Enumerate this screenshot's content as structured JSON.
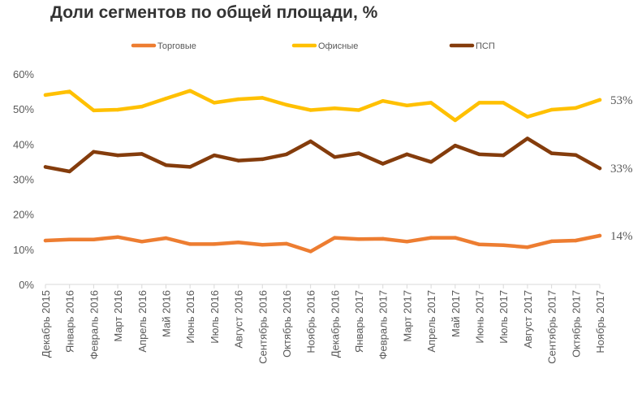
{
  "chart_data": {
    "type": "line",
    "title": "Доли сегментов по общей площади, %",
    "xlabel": "",
    "ylabel": "",
    "ylim": [
      0,
      60
    ],
    "yticks": [
      "0%",
      "10%",
      "20%",
      "30%",
      "40%",
      "50%",
      "60%"
    ],
    "grid": false,
    "legend_position": "top",
    "categories": [
      "Декабрь 2015",
      "Январь 2016",
      "Февраль 2016",
      "Март 2016",
      "Апрель 2016",
      "Май 2016",
      "Июнь 2016",
      "Июль 2016",
      "Август 2016",
      "Сентябрь 2016",
      "Октябрь 2016",
      "Ноябрь 2016",
      "Декабрь 2016",
      "Январь 2017",
      "Февраль 2017",
      "Март 2017",
      "Апрель 2017",
      "Май 2017",
      "Июнь 2017",
      "Июль 2017",
      "Август 2017",
      "Сентябрь 2017",
      "Октябрь 2017",
      "Ноябрь 2017"
    ],
    "series": [
      {
        "name": "Торговые",
        "color": "#ED7D31",
        "end_label": "14%",
        "values": [
          12.5,
          12.8,
          12.8,
          13.5,
          12.2,
          13.2,
          11.5,
          11.5,
          12.0,
          11.3,
          11.6,
          9.4,
          13.3,
          12.9,
          13.0,
          12.2,
          13.3,
          13.3,
          11.4,
          11.2,
          10.6,
          12.3,
          12.5,
          13.9
        ]
      },
      {
        "name": "Офисные",
        "color": "#FFC000",
        "end_label": "53%",
        "values": [
          54.0,
          55.0,
          49.6,
          49.8,
          50.7,
          53.0,
          55.2,
          51.8,
          52.8,
          53.2,
          51.2,
          49.7,
          50.2,
          49.7,
          52.3,
          51.0,
          51.8,
          46.8,
          51.8,
          51.8,
          47.8,
          49.8,
          50.3,
          52.6
        ]
      },
      {
        "name": "ПСП",
        "color": "#843C0C",
        "end_label": "33%",
        "values": [
          33.5,
          32.2,
          37.8,
          36.8,
          37.2,
          34.0,
          33.5,
          36.8,
          35.3,
          35.7,
          37.1,
          40.8,
          36.3,
          37.4,
          34.4,
          37.1,
          34.9,
          39.6,
          37.1,
          36.8,
          41.6,
          37.4,
          36.9,
          33.1
        ]
      }
    ]
  }
}
